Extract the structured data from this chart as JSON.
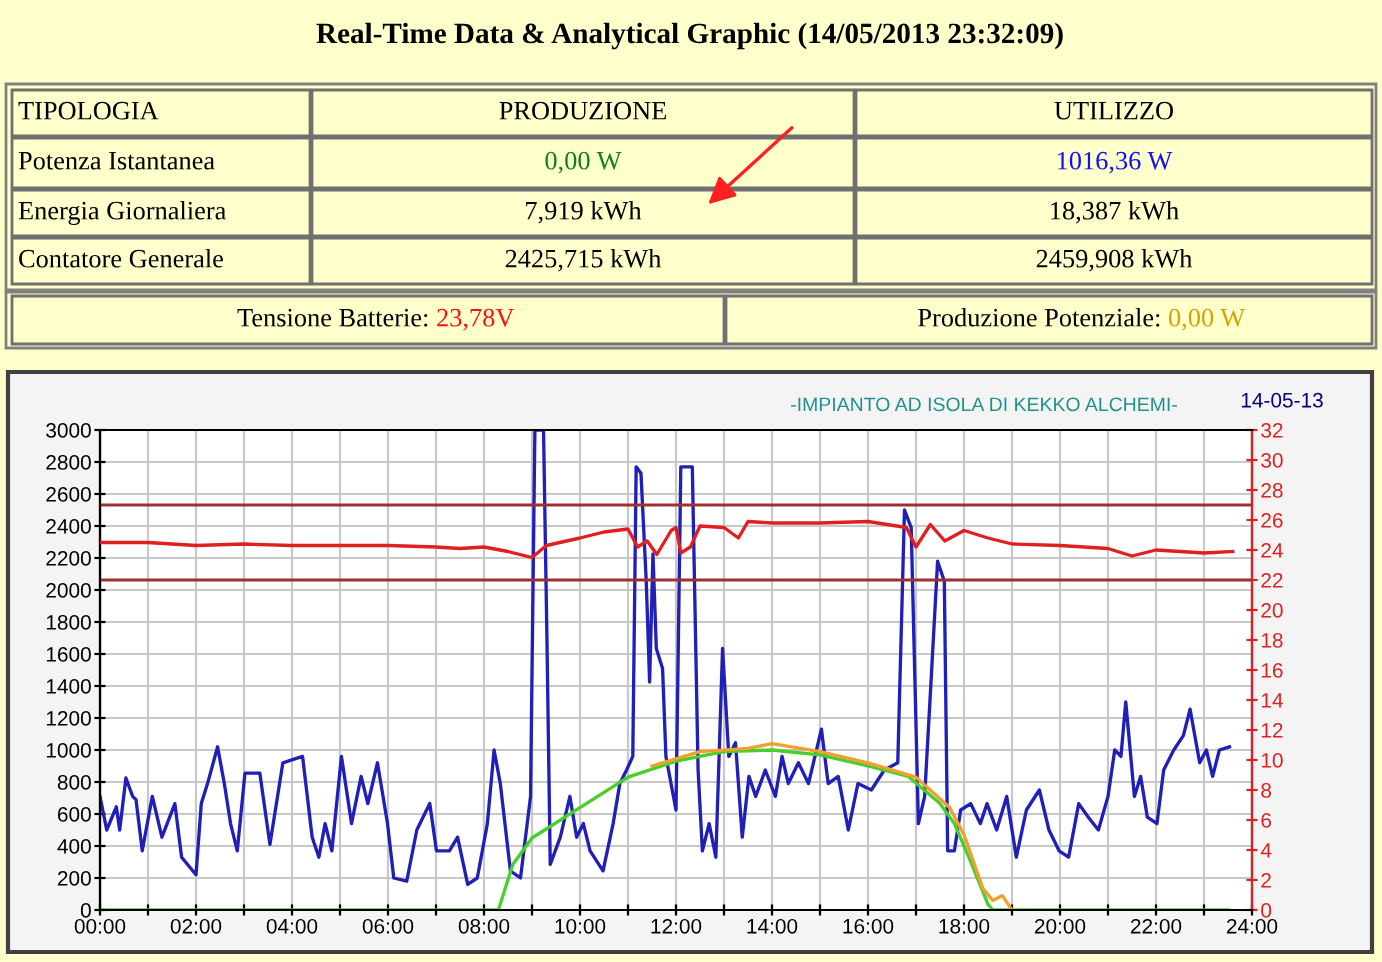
{
  "chart_data": {
    "type": "line",
    "title": "Real-Time Data & Analytical Graphic (14/05/2013 23:32:09)",
    "annotations": [
      "TIPOLOGIA",
      "PRODUZIONE",
      "UTILIZZO",
      "Potenza Istantanea",
      "0,00 W",
      "1016,36 W",
      "Energia Giornaliera",
      "7,919 kWh",
      "18,387 kWh",
      "Contatore Generale",
      "2425,715 kWh",
      "2459,908 kWh",
      "Tensione Batterie: ",
      "23,78V",
      "Produzione Potenziale: ",
      "0,00 W",
      "-IMPIANTO AD ISOLA DI KEKKO ALCHEMI-",
      "14-05-13"
    ],
    "xlim": [
      0,
      24
    ],
    "xticks": [
      {
        "value": 0,
        "label": "00:00"
      },
      {
        "value": 1,
        "label": null
      },
      {
        "value": 2,
        "label": "02:00"
      },
      {
        "value": 3,
        "label": null
      },
      {
        "value": 4,
        "label": "04:00"
      },
      {
        "value": 5,
        "label": null
      },
      {
        "value": 6,
        "label": "06:00"
      },
      {
        "value": 7,
        "label": null
      },
      {
        "value": 8,
        "label": "08:00"
      },
      {
        "value": 9,
        "label": null
      },
      {
        "value": 10,
        "label": "10:00"
      },
      {
        "value": 11,
        "label": null
      },
      {
        "value": 12,
        "label": "12:00"
      },
      {
        "value": 13,
        "label": null
      },
      {
        "value": 14,
        "label": "14:00"
      },
      {
        "value": 15,
        "label": null
      },
      {
        "value": 16,
        "label": "16:00"
      },
      {
        "value": 17,
        "label": null
      },
      {
        "value": 18,
        "label": "18:00"
      },
      {
        "value": 19,
        "label": null
      },
      {
        "value": 20,
        "label": "20:00"
      },
      {
        "value": 21,
        "label": null
      },
      {
        "value": 22,
        "label": "22:00"
      },
      {
        "value": 23,
        "label": null
      },
      {
        "value": 24,
        "label": "24:00"
      }
    ],
    "ylim": [
      0,
      3000
    ],
    "yticks": [
      0,
      200,
      400,
      600,
      800,
      1000,
      1200,
      1400,
      1600,
      1800,
      2000,
      2200,
      2400,
      2600,
      2800,
      3000
    ],
    "y2lim": [
      0,
      32
    ],
    "y2ticks": [
      0,
      2,
      4,
      6,
      8,
      10,
      12,
      14,
      16,
      18,
      20,
      22,
      24,
      26,
      28,
      30,
      32
    ],
    "grid": true,
    "ref_lines": [
      {
        "axis": "y2",
        "value": 27,
        "color": "#a03030"
      },
      {
        "axis": "y2",
        "value": 22,
        "color": "#a03030"
      }
    ],
    "series": [
      {
        "color": "#2020b8",
        "x": [
          0.0,
          0.14,
          0.34,
          0.41,
          0.54,
          0.68,
          0.75,
          0.88,
          1.09,
          1.29,
          1.56,
          1.7,
          2.0,
          2.11,
          2.24,
          2.45,
          2.59,
          2.72,
          2.86,
          3.02,
          3.33,
          3.54,
          3.81,
          4.22,
          4.42,
          4.56,
          4.69,
          4.83,
          5.03,
          5.24,
          5.44,
          5.58,
          5.78,
          5.99,
          6.12,
          6.39,
          6.6,
          6.87,
          7.01,
          7.28,
          7.45,
          7.66,
          7.86,
          8.07,
          8.21,
          8.34,
          8.55,
          8.76,
          8.97,
          9.06,
          9.24,
          9.31,
          9.38,
          9.59,
          9.79,
          9.93,
          10.07,
          10.21,
          10.48,
          10.69,
          10.83,
          10.97,
          11.1,
          11.17,
          11.27,
          11.38,
          11.45,
          11.52,
          11.59,
          11.72,
          11.79,
          12.0,
          12.1,
          12.34,
          12.46,
          12.55,
          12.69,
          12.83,
          12.97,
          13.1,
          13.24,
          13.38,
          13.52,
          13.66,
          13.86,
          14.07,
          14.21,
          14.34,
          14.55,
          14.76,
          15.03,
          15.17,
          15.38,
          15.59,
          15.79,
          16.07,
          16.34,
          16.62,
          16.76,
          16.9,
          17.05,
          17.18,
          17.32,
          17.45,
          17.59,
          17.66,
          17.8,
          17.93,
          18.14,
          18.34,
          18.48,
          18.68,
          18.89,
          19.09,
          19.3,
          19.57,
          19.77,
          19.98,
          20.18,
          20.39,
          20.59,
          20.8,
          21.0,
          21.14,
          21.27,
          21.37,
          21.55,
          21.68,
          21.82,
          22.02,
          22.16,
          22.37,
          22.57,
          22.71,
          22.91,
          23.05,
          23.18,
          23.32,
          23.53
        ],
        "values": [
          710,
          500,
          645,
          500,
          825,
          710,
          690,
          370,
          710,
          455,
          665,
          330,
          220,
          665,
          790,
          1020,
          790,
          540,
          370,
          855,
          855,
          410,
          920,
          960,
          455,
          330,
          540,
          370,
          960,
          540,
          835,
          665,
          920,
          540,
          200,
          180,
          500,
          665,
          370,
          370,
          455,
          160,
          200,
          540,
          1000,
          790,
          245,
          200,
          710,
          3000,
          3000,
          1720,
          285,
          455,
          710,
          455,
          540,
          370,
          245,
          540,
          790,
          875,
          960,
          2770,
          2730,
          2055,
          1425,
          2225,
          1635,
          1510,
          960,
          625,
          2770,
          2770,
          875,
          370,
          540,
          330,
          1635,
          960,
          1045,
          455,
          835,
          710,
          875,
          710,
          960,
          790,
          920,
          790,
          1130,
          790,
          835,
          500,
          790,
          750,
          875,
          920,
          2500,
          2390,
          540,
          710,
          1465,
          2180,
          2055,
          370,
          370,
          625,
          665,
          540,
          665,
          500,
          710,
          330,
          625,
          750,
          500,
          370,
          330,
          665,
          580,
          500,
          710,
          1000,
          960,
          1300,
          710,
          835,
          580,
          540,
          875,
          1000,
          1090,
          1255,
          920,
          1000,
          835,
          1000,
          1020
        ]
      },
      {
        "color": "#e02020",
        "axis": "y2",
        "x": [
          0,
          1,
          2,
          3,
          4,
          5,
          6,
          7,
          7.5,
          8,
          8.5,
          9,
          9.3,
          10,
          10.5,
          11,
          11.2,
          11.4,
          11.6,
          11.9,
          12,
          12.1,
          12.3,
          12.5,
          13,
          13.3,
          13.5,
          14,
          15,
          16,
          16.8,
          17.0,
          17.3,
          17.6,
          18,
          18.5,
          19,
          20,
          21,
          21.5,
          22,
          23,
          23.6
        ],
        "values": [
          24.5,
          24.5,
          24.3,
          24.4,
          24.3,
          24.3,
          24.3,
          24.2,
          24.1,
          24.2,
          23.9,
          23.5,
          24.3,
          24.8,
          25.2,
          25.4,
          24.2,
          24.6,
          23.7,
          25.3,
          25.5,
          23.8,
          24.2,
          25.6,
          25.5,
          24.8,
          25.9,
          25.8,
          25.8,
          25.9,
          25.5,
          24.2,
          25.7,
          24.6,
          25.3,
          24.8,
          24.4,
          24.3,
          24.1,
          23.6,
          24.0,
          23.8,
          23.9
        ]
      },
      {
        "color": "#48d028",
        "x": [
          0,
          8.3,
          8.6,
          9,
          10,
          11,
          12,
          13,
          14,
          15,
          16,
          16.84,
          17.5,
          17.8,
          18.1,
          18.5,
          18.6,
          23.5
        ],
        "values": [
          0,
          0,
          285,
          450,
          640,
          830,
          930,
          990,
          1000,
          970,
          900,
          835,
          665,
          540,
          330,
          35,
          0,
          0
        ]
      },
      {
        "color": "#f0a030",
        "x": [
          11.5,
          12.5,
          13.5,
          14,
          15,
          16,
          17,
          17.7,
          18,
          18.4,
          18.6,
          18.8,
          19
        ],
        "values": [
          900,
          990,
          1010,
          1040,
          990,
          920,
          830,
          640,
          470,
          130,
          60,
          90,
          0
        ]
      }
    ]
  }
}
